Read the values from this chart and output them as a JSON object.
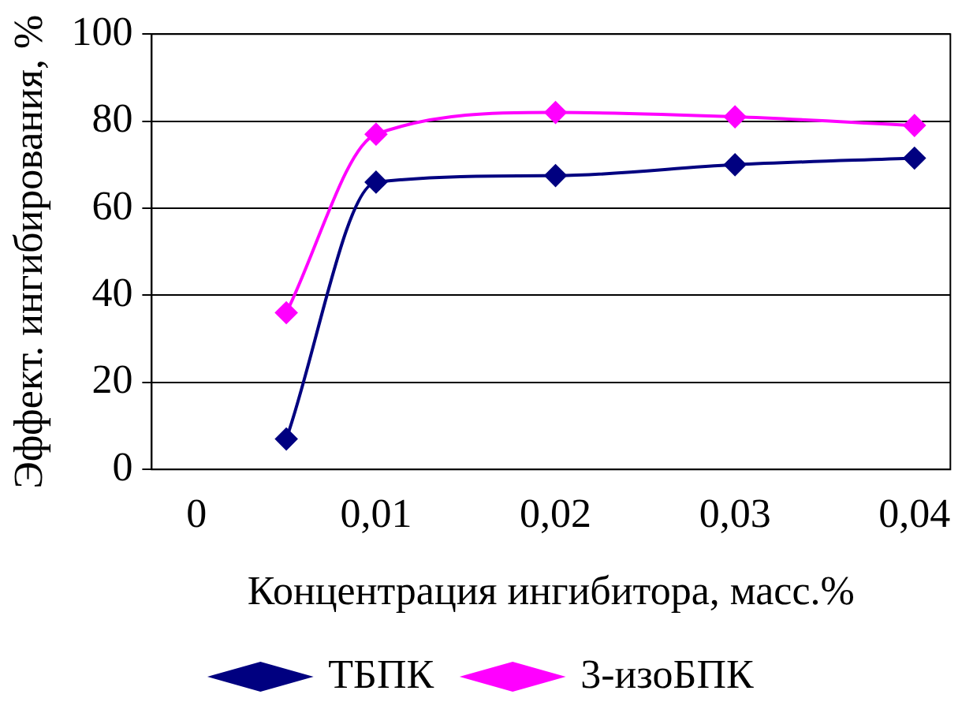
{
  "chart_data": {
    "type": "line",
    "xlabel": "Концентрация ингибитора, масс.%",
    "ylabel": "Эффект. ингибирования, %",
    "x": [
      0.005,
      0.01,
      0.02,
      0.03,
      0.04
    ],
    "series": [
      {
        "name": "ТБПК",
        "color": "#000080",
        "values": [
          7,
          66,
          67.5,
          70,
          71.5
        ]
      },
      {
        "name": "3-изоБПК",
        "color": "#ff00ff",
        "values": [
          36,
          77,
          82,
          81,
          79
        ]
      }
    ],
    "xlim": [
      -0.0025,
      0.042
    ],
    "xticks": [
      0,
      {
        "value": 0.01,
        "label": "0,01"
      },
      {
        "value": 0.02,
        "label": "0,02"
      },
      {
        "value": 0.03,
        "label": "0,03"
      },
      {
        "value": 0.04,
        "label": "0,04"
      }
    ],
    "ylim": [
      0,
      100
    ],
    "yticks": [
      0,
      20,
      40,
      60,
      80,
      100
    ],
    "grid": "y",
    "legend": "bottom",
    "marker": "diamond",
    "line_style": "solid"
  }
}
